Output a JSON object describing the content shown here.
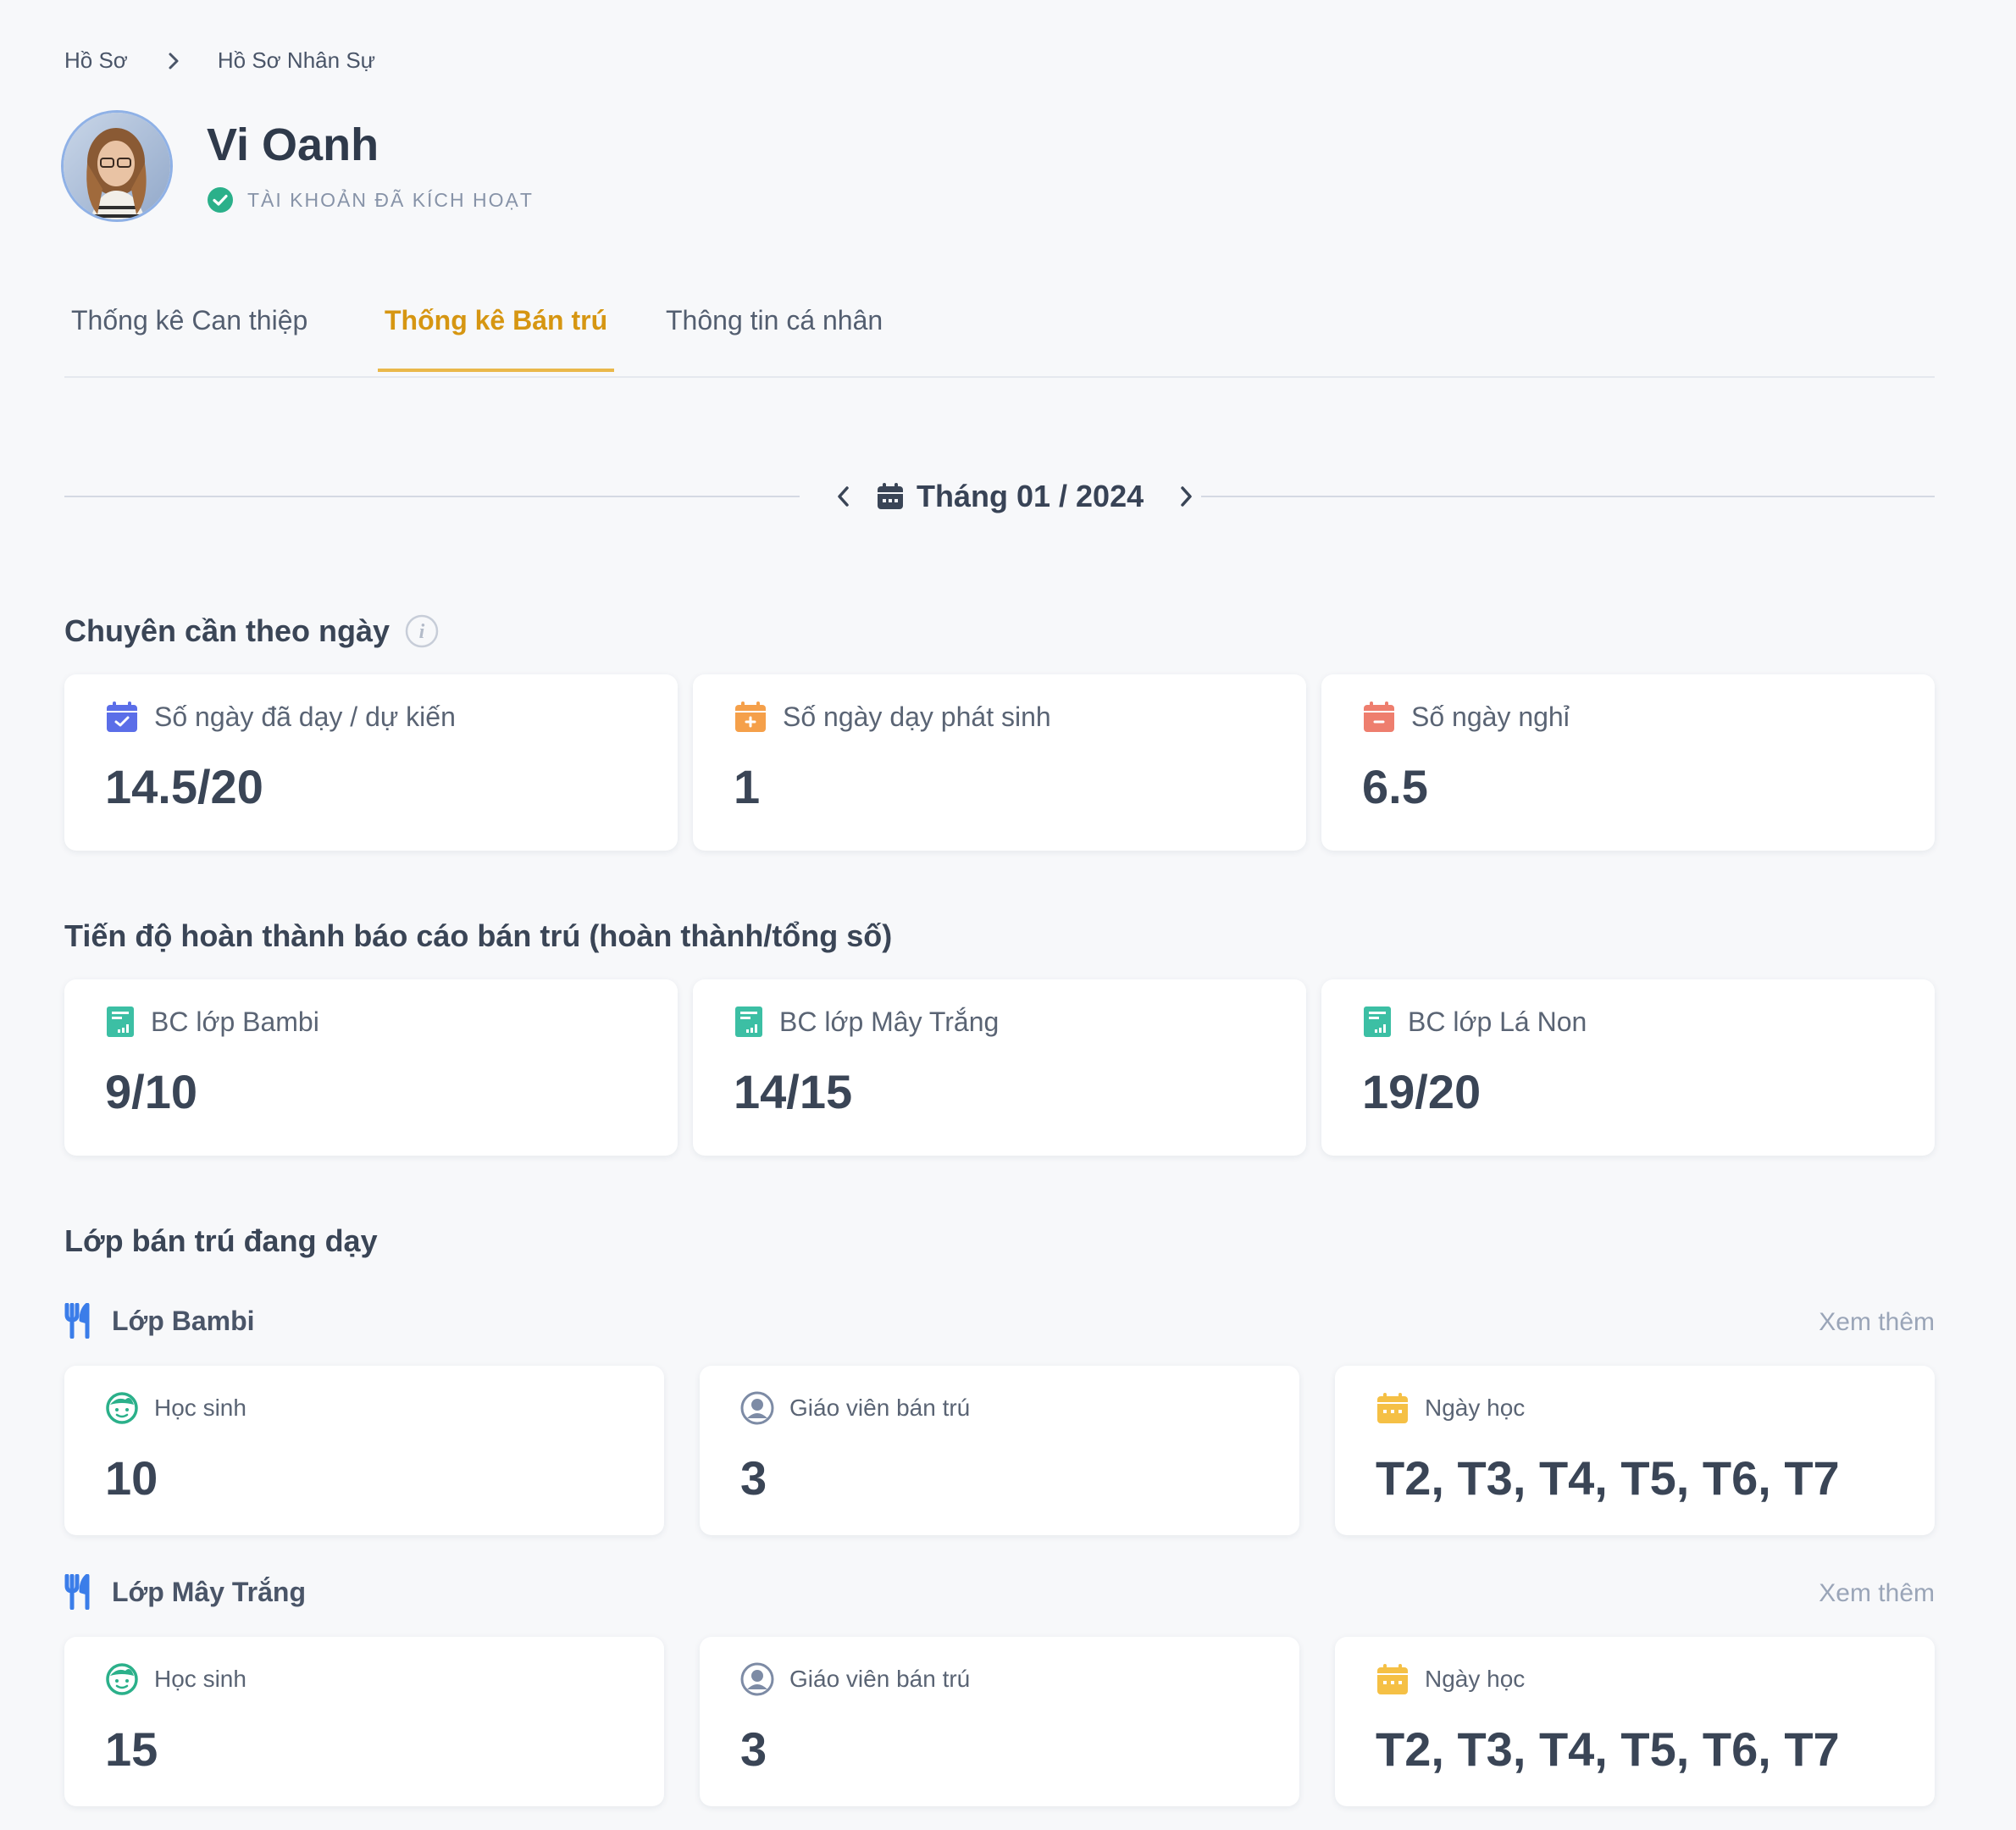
{
  "breadcrumb": {
    "root": "Hồ Sơ",
    "current": "Hồ Sơ Nhân Sự"
  },
  "profile": {
    "name": "Vi Oanh",
    "status": "TÀI KHOẢN ĐÃ KÍCH HOẠT"
  },
  "tabs": [
    {
      "label": "Thống kê Can thiệp",
      "active": false
    },
    {
      "label": "Thống kê Bán trú",
      "active": true
    },
    {
      "label": "Thông tin cá nhân",
      "active": false
    }
  ],
  "month": {
    "label": "Tháng 01 / 2024"
  },
  "attendance": {
    "title": "Chuyên cần theo ngày",
    "cards": [
      {
        "label": "Số ngày đã dạy / dự kiến",
        "value": "14.5/20",
        "icon": "calendar-check-icon",
        "color": "#5b6ee8"
      },
      {
        "label": "Số ngày dạy phát sinh",
        "value": "1",
        "icon": "calendar-plus-icon",
        "color": "#f5a04a"
      },
      {
        "label": "Số ngày nghỉ",
        "value": "6.5",
        "icon": "calendar-minus-icon",
        "color": "#ee7e6e"
      }
    ]
  },
  "reports": {
    "title": "Tiến độ hoàn thành báo cáo bán trú (hoàn thành/tổng số)",
    "cards": [
      {
        "label": "BC lớp Bambi",
        "value": "9/10"
      },
      {
        "label": "BC lớp Mây Trắng",
        "value": "14/15"
      },
      {
        "label": "BC lớp Lá Non",
        "value": "19/20"
      }
    ],
    "icon_color": "#3cbfa4"
  },
  "classes": {
    "title": "Lớp bán trú đang dạy",
    "more_label": "Xem thêm",
    "items": [
      {
        "name": "Lớp Bambi",
        "students_label": "Học sinh",
        "students": "10",
        "teachers_label": "Giáo viên bán trú",
        "teachers": "3",
        "days_label": "Ngày học",
        "days": "T2, T3, T4, T5, T6, T7"
      },
      {
        "name": "Lớp Mây Trắng",
        "students_label": "Học sinh",
        "students": "15",
        "teachers_label": "Giáo viên bán trú",
        "teachers": "3",
        "days_label": "Ngày học",
        "days": "T2, T3, T4, T5, T6, T7"
      }
    ]
  },
  "colors": {
    "accent": "#d69612",
    "tab_underline": "#eab84a",
    "success": "#2bb08a",
    "class_icon": "#3b7de9"
  }
}
